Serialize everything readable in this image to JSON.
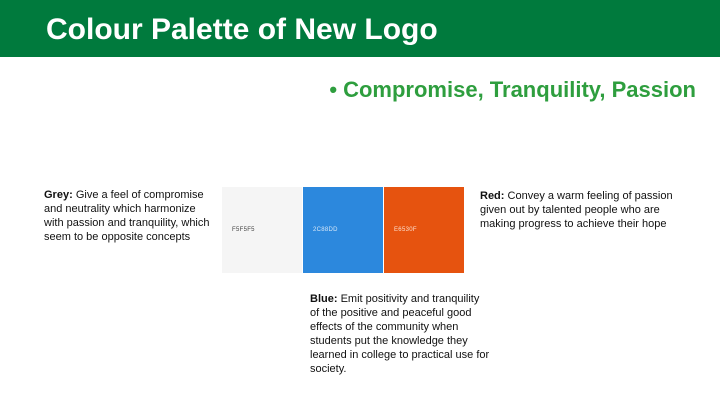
{
  "header": {
    "title": "Colour Palette of New Logo",
    "background": "#007a3d"
  },
  "subtitle": {
    "bullet": "•",
    "text": "Compromise, Tranquility, Passion",
    "color": "#2e9e3e"
  },
  "swatches": [
    {
      "name": "grey",
      "hex_label": "F5F5F5",
      "color": "#F5F5F5",
      "text_color": "#444444"
    },
    {
      "name": "blue",
      "hex_label": "2C88DD",
      "color": "#2C88DD",
      "text_color": "#d8e8f8"
    },
    {
      "name": "red",
      "hex_label": "E6530F",
      "color": "#E6530F",
      "text_color": "#fde0d0"
    }
  ],
  "descriptions": {
    "grey": {
      "label": "Grey:",
      "text": "Give a feel of compromise and neutrality which harmonize with passion and tranquility, which seem to be opposite concepts"
    },
    "red": {
      "label": "Red:",
      "text": "Convey a warm feeling of passion given out by talented people who are making progress to achieve their hope"
    },
    "blue": {
      "label": "Blue:",
      "text": "Emit positivity and tranquility of the positive and peaceful good effects of the community when students put the knowledge they learned in college to practical use for society."
    }
  }
}
